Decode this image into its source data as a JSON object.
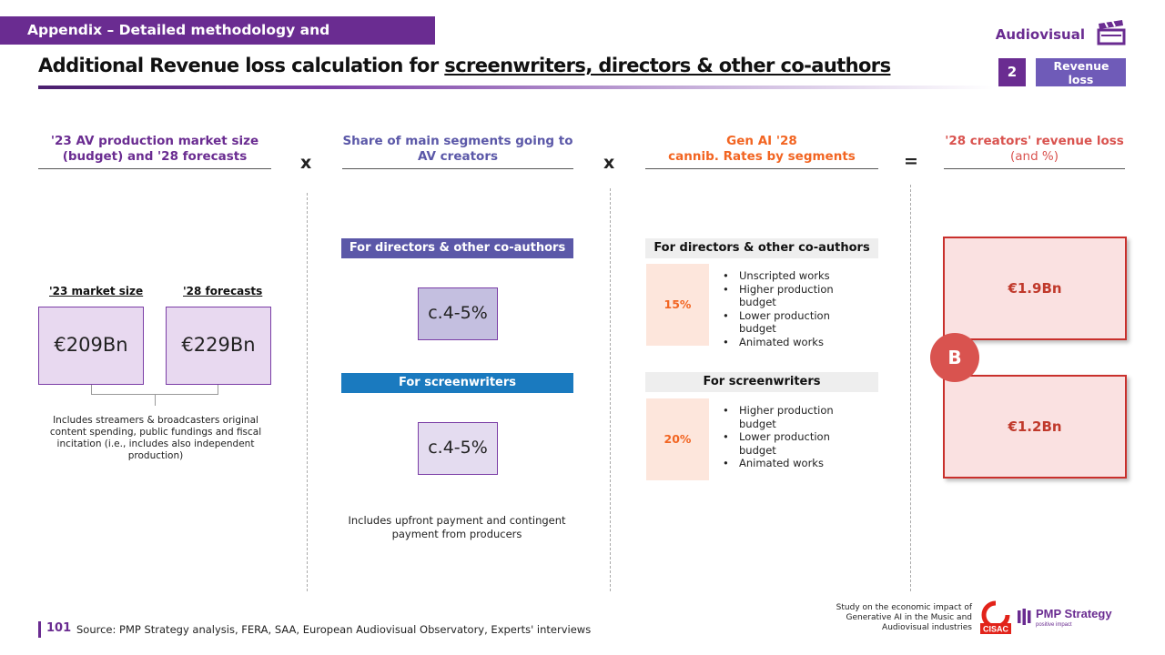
{
  "header": {
    "banner": "Appendix – Detailed methodology and assumptions",
    "category": "Audiovisual",
    "title_prefix": "Additional Revenue loss calculation for ",
    "title_underlined": "screenwriters, directors & other co-authors",
    "section_number": "2",
    "section_label": "Revenue loss"
  },
  "columns": {
    "market": {
      "heading": "'23 AV production market size (budget) and '28 forecasts",
      "label_2023": "'23 market size",
      "label_2028": "'28 forecasts",
      "value_2023": "€209Bn",
      "value_2028": "€229Bn",
      "note": "Includes streamers & broadcasters original content spending, public fundings and fiscal incitation (i.e., includes also independent production)"
    },
    "operator_1": "x",
    "share": {
      "heading": "Share of main segments going to AV creators",
      "directors_label": "For directors & other co-authors",
      "directors_value": "c.4-5%",
      "screenwriters_label": "For screenwriters",
      "screenwriters_value": "c.4-5%",
      "note": "Includes upfront payment and contingent payment from producers"
    },
    "operator_2": "x",
    "cannib": {
      "heading_line1": "Gen AI '28",
      "heading_line2": "cannib. Rates by segments",
      "directors_label": "For directors & other co-authors",
      "directors_rate": "15%",
      "directors_items": [
        "Unscripted works",
        "Higher production budget",
        "Lower production budget",
        "Animated works"
      ],
      "screenwriters_label": "For screenwriters",
      "screenwriters_rate": "20%",
      "screenwriters_items": [
        "Higher production budget",
        "Lower production budget",
        "Animated works"
      ]
    },
    "operator_3": "=",
    "loss": {
      "heading_bold": "'28 creators' revenue loss",
      "heading_light": " (and %)",
      "directors_value": "€1.9Bn",
      "screenwriters_value": "€1.2Bn",
      "marker": "B"
    }
  },
  "footer": {
    "page_number": "101",
    "source": "Source:  PMP Strategy analysis, FERA, SAA, European Audiovisual Observatory, Experts' interviews",
    "study": "Study on the economic impact of Generative AI in the Music and Audiovisual industries",
    "cisac": "CISAC",
    "pmp_name": "PMP Strategy",
    "pmp_tagline": "positive impact"
  },
  "colors": {
    "purple": "#6a2c91",
    "lavender": "#6f5bb8",
    "blue": "#1a7abf",
    "orange": "#f26522",
    "red": "#c9302c"
  }
}
